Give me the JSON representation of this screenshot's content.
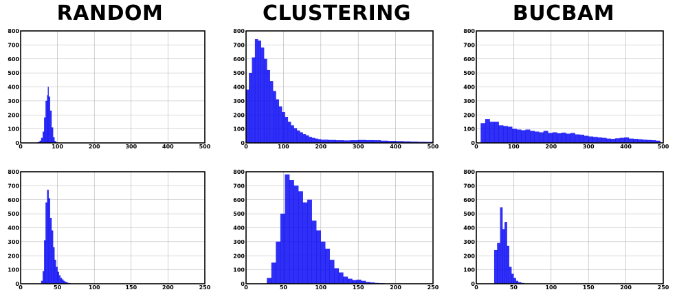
{
  "column_titles": [
    "RANDOM",
    "CLUSTERING",
    "BUCBAM"
  ],
  "colors": {
    "bar": "#0a0af5",
    "grid": "#b0b0b0",
    "frame": "#000000"
  },
  "chart_data": [
    {
      "type": "bar",
      "panel": "random-top",
      "title": "RANDOM",
      "xlim": [
        0,
        500
      ],
      "ylim": [
        0,
        800
      ],
      "xticks": [
        0,
        100,
        200,
        300,
        400,
        500
      ],
      "yticks": [
        0,
        100,
        200,
        300,
        400,
        500,
        600,
        700,
        800
      ],
      "grid": true,
      "bins": [
        [
          44,
          48,
          3
        ],
        [
          48,
          52,
          6
        ],
        [
          52,
          56,
          15
        ],
        [
          56,
          60,
          35
        ],
        [
          60,
          64,
          80
        ],
        [
          64,
          68,
          180
        ],
        [
          68,
          72,
          300
        ],
        [
          72,
          74,
          340
        ],
        [
          74,
          76,
          400
        ],
        [
          76,
          80,
          330
        ],
        [
          80,
          84,
          230
        ],
        [
          84,
          88,
          110
        ],
        [
          88,
          92,
          40
        ],
        [
          92,
          96,
          12
        ],
        [
          96,
          100,
          3
        ]
      ]
    },
    {
      "type": "bar",
      "panel": "clustering-top",
      "title": "CLUSTERING",
      "xlim": [
        0,
        500
      ],
      "ylim": [
        0,
        800
      ],
      "xticks": [
        0,
        100,
        200,
        300,
        400,
        500
      ],
      "yticks": [
        0,
        100,
        200,
        300,
        400,
        500,
        600,
        700,
        800
      ],
      "grid": true,
      "bins": [
        [
          0,
          8,
          380
        ],
        [
          8,
          16,
          500
        ],
        [
          16,
          24,
          610
        ],
        [
          24,
          32,
          740
        ],
        [
          32,
          40,
          730
        ],
        [
          40,
          48,
          680
        ],
        [
          48,
          56,
          600
        ],
        [
          56,
          64,
          520
        ],
        [
          64,
          72,
          440
        ],
        [
          72,
          80,
          370
        ],
        [
          80,
          88,
          310
        ],
        [
          88,
          96,
          260
        ],
        [
          96,
          104,
          220
        ],
        [
          104,
          112,
          185
        ],
        [
          112,
          120,
          150
        ],
        [
          120,
          128,
          125
        ],
        [
          128,
          136,
          105
        ],
        [
          136,
          144,
          88
        ],
        [
          144,
          152,
          75
        ],
        [
          152,
          160,
          62
        ],
        [
          160,
          168,
          52
        ],
        [
          168,
          176,
          42
        ],
        [
          176,
          184,
          35
        ],
        [
          184,
          192,
          30
        ],
        [
          192,
          200,
          26
        ],
        [
          200,
          220,
          22
        ],
        [
          220,
          240,
          20
        ],
        [
          240,
          260,
          18
        ],
        [
          260,
          280,
          17
        ],
        [
          280,
          300,
          18
        ],
        [
          300,
          320,
          20
        ],
        [
          320,
          340,
          19
        ],
        [
          340,
          360,
          18
        ],
        [
          360,
          380,
          15
        ],
        [
          380,
          400,
          13
        ],
        [
          400,
          420,
          12
        ],
        [
          420,
          440,
          10
        ],
        [
          440,
          460,
          8
        ],
        [
          460,
          480,
          7
        ],
        [
          480,
          500,
          6
        ]
      ]
    },
    {
      "type": "bar",
      "panel": "bucbam-top",
      "title": "BUCBAM",
      "xlim": [
        0,
        500
      ],
      "ylim": [
        0,
        800
      ],
      "xticks": [
        0,
        100,
        200,
        300,
        400,
        500
      ],
      "yticks": [
        0,
        100,
        200,
        300,
        400,
        500,
        600,
        700,
        800
      ],
      "grid": true,
      "bins": [
        [
          12,
          24,
          140
        ],
        [
          24,
          36,
          170
        ],
        [
          36,
          48,
          150
        ],
        [
          48,
          60,
          150
        ],
        [
          60,
          72,
          125
        ],
        [
          72,
          84,
          120
        ],
        [
          84,
          96,
          115
        ],
        [
          96,
          108,
          100
        ],
        [
          108,
          120,
          95
        ],
        [
          120,
          132,
          90
        ],
        [
          132,
          144,
          95
        ],
        [
          144,
          156,
          85
        ],
        [
          156,
          168,
          80
        ],
        [
          168,
          180,
          75
        ],
        [
          180,
          192,
          85
        ],
        [
          192,
          204,
          70
        ],
        [
          204,
          216,
          75
        ],
        [
          216,
          228,
          68
        ],
        [
          228,
          240,
          72
        ],
        [
          240,
          252,
          65
        ],
        [
          252,
          264,
          70
        ],
        [
          264,
          276,
          60
        ],
        [
          276,
          288,
          58
        ],
        [
          288,
          300,
          50
        ],
        [
          300,
          312,
          45
        ],
        [
          312,
          324,
          42
        ],
        [
          324,
          336,
          38
        ],
        [
          336,
          348,
          35
        ],
        [
          348,
          360,
          30
        ],
        [
          360,
          372,
          28
        ],
        [
          372,
          384,
          32
        ],
        [
          384,
          396,
          35
        ],
        [
          396,
          408,
          38
        ],
        [
          408,
          420,
          30
        ],
        [
          420,
          432,
          28
        ],
        [
          432,
          444,
          25
        ],
        [
          444,
          456,
          22
        ],
        [
          456,
          468,
          20
        ],
        [
          468,
          480,
          18
        ],
        [
          480,
          492,
          15
        ]
      ]
    },
    {
      "type": "bar",
      "panel": "random-bottom",
      "xlim": [
        0,
        250
      ],
      "ylim": [
        0,
        800
      ],
      "xticks": [
        0,
        50,
        100,
        150,
        200,
        250
      ],
      "yticks": [
        0,
        100,
        200,
        300,
        400,
        500,
        600,
        700,
        800
      ],
      "grid": true,
      "bins": [
        [
          28,
          30,
          20
        ],
        [
          30,
          32,
          90
        ],
        [
          32,
          34,
          310
        ],
        [
          34,
          36,
          580
        ],
        [
          36,
          38,
          670
        ],
        [
          38,
          40,
          610
        ],
        [
          40,
          42,
          470
        ],
        [
          42,
          44,
          380
        ],
        [
          44,
          46,
          260
        ],
        [
          46,
          48,
          170
        ],
        [
          48,
          50,
          120
        ],
        [
          50,
          52,
          85
        ],
        [
          52,
          54,
          60
        ],
        [
          54,
          56,
          40
        ],
        [
          56,
          58,
          30
        ],
        [
          58,
          60,
          20
        ],
        [
          60,
          62,
          14
        ],
        [
          62,
          64,
          8
        ],
        [
          64,
          66,
          5
        ],
        [
          66,
          68,
          3
        ]
      ]
    },
    {
      "type": "bar",
      "panel": "clustering-bottom",
      "xlim": [
        0,
        250
      ],
      "ylim": [
        0,
        800
      ],
      "xticks": [
        0,
        50,
        100,
        150,
        200,
        250
      ],
      "yticks": [
        0,
        100,
        200,
        300,
        400,
        500,
        600,
        700,
        800
      ],
      "grid": true,
      "bins": [
        [
          28,
          34,
          40
        ],
        [
          34,
          40,
          150
        ],
        [
          40,
          46,
          300
        ],
        [
          46,
          52,
          500
        ],
        [
          52,
          58,
          780
        ],
        [
          58,
          64,
          740
        ],
        [
          64,
          70,
          700
        ],
        [
          70,
          76,
          660
        ],
        [
          76,
          82,
          580
        ],
        [
          82,
          88,
          600
        ],
        [
          88,
          94,
          450
        ],
        [
          94,
          100,
          380
        ],
        [
          100,
          106,
          300
        ],
        [
          106,
          112,
          250
        ],
        [
          112,
          118,
          170
        ],
        [
          118,
          124,
          110
        ],
        [
          124,
          130,
          80
        ],
        [
          130,
          136,
          50
        ],
        [
          136,
          142,
          35
        ],
        [
          142,
          148,
          25
        ],
        [
          148,
          154,
          28
        ],
        [
          154,
          160,
          20
        ],
        [
          160,
          166,
          12
        ],
        [
          166,
          172,
          8
        ],
        [
          172,
          178,
          5
        ],
        [
          178,
          184,
          3
        ]
      ]
    },
    {
      "type": "bar",
      "panel": "bucbam-bottom",
      "xlim": [
        0,
        250
      ],
      "ylim": [
        0,
        800
      ],
      "xticks": [
        0,
        50,
        100,
        150,
        200,
        250
      ],
      "yticks": [
        0,
        100,
        200,
        300,
        400,
        500,
        600,
        700,
        800
      ],
      "grid": true,
      "bins": [
        [
          24,
          28,
          240
        ],
        [
          28,
          32,
          290
        ],
        [
          32,
          35,
          545
        ],
        [
          35,
          38,
          390
        ],
        [
          38,
          41,
          440
        ],
        [
          41,
          44,
          270
        ],
        [
          44,
          47,
          120
        ],
        [
          47,
          50,
          70
        ],
        [
          50,
          53,
          40
        ],
        [
          53,
          56,
          20
        ],
        [
          56,
          60,
          10
        ],
        [
          60,
          64,
          5
        ]
      ]
    }
  ]
}
